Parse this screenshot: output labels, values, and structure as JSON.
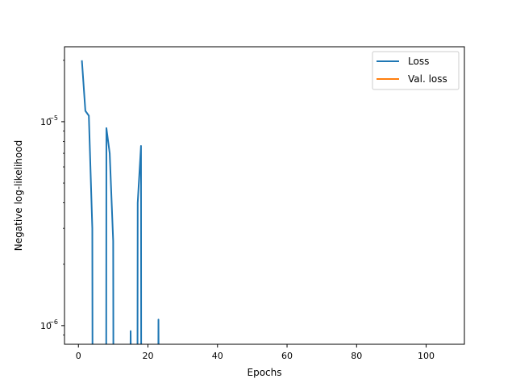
{
  "chart_data": {
    "type": "line",
    "title": "",
    "xlabel": "Epochs",
    "ylabel": "Negative log-likelihood",
    "xlim": [
      -4,
      111
    ],
    "ylim": [
      8.1e-07,
      2.33e-05
    ],
    "yscale": "log",
    "grid": false,
    "legend_position": "top-right",
    "x_ticks": [
      0,
      20,
      40,
      60,
      80,
      100
    ],
    "y_ticks": [
      {
        "value": 1e-06,
        "base": "10",
        "exp": "−6"
      },
      {
        "value": 1e-05,
        "base": "10",
        "exp": "−5"
      }
    ],
    "series": [
      {
        "name": "Loss",
        "color": "#1f77b4",
        "segments": [
          [
            [
              1,
              2e-05
            ],
            [
              2,
              1.13e-05
            ],
            [
              3,
              1.07e-05
            ],
            [
              4,
              3e-06
            ],
            [
              4.05,
              8.1e-07
            ]
          ],
          [
            [
              8,
              8.1e-07
            ],
            [
              8.05,
              9.3e-06
            ],
            [
              9,
              7e-06
            ],
            [
              10,
              2.6e-06
            ],
            [
              10.05,
              8.1e-07
            ]
          ],
          [
            [
              15,
              8.1e-07
            ],
            [
              15.02,
              9.4e-07
            ],
            [
              15.05,
              8.1e-07
            ]
          ],
          [
            [
              17,
              8.1e-07
            ],
            [
              17.05,
              4e-06
            ],
            [
              18,
              7.6e-06
            ],
            [
              18.05,
              8.1e-07
            ]
          ],
          [
            [
              23,
              8.1e-07
            ],
            [
              23.02,
              1.07e-06
            ],
            [
              23.05,
              8.1e-07
            ]
          ]
        ]
      },
      {
        "name": "Val. loss",
        "color": "#ff7f0e",
        "segments": []
      }
    ]
  }
}
